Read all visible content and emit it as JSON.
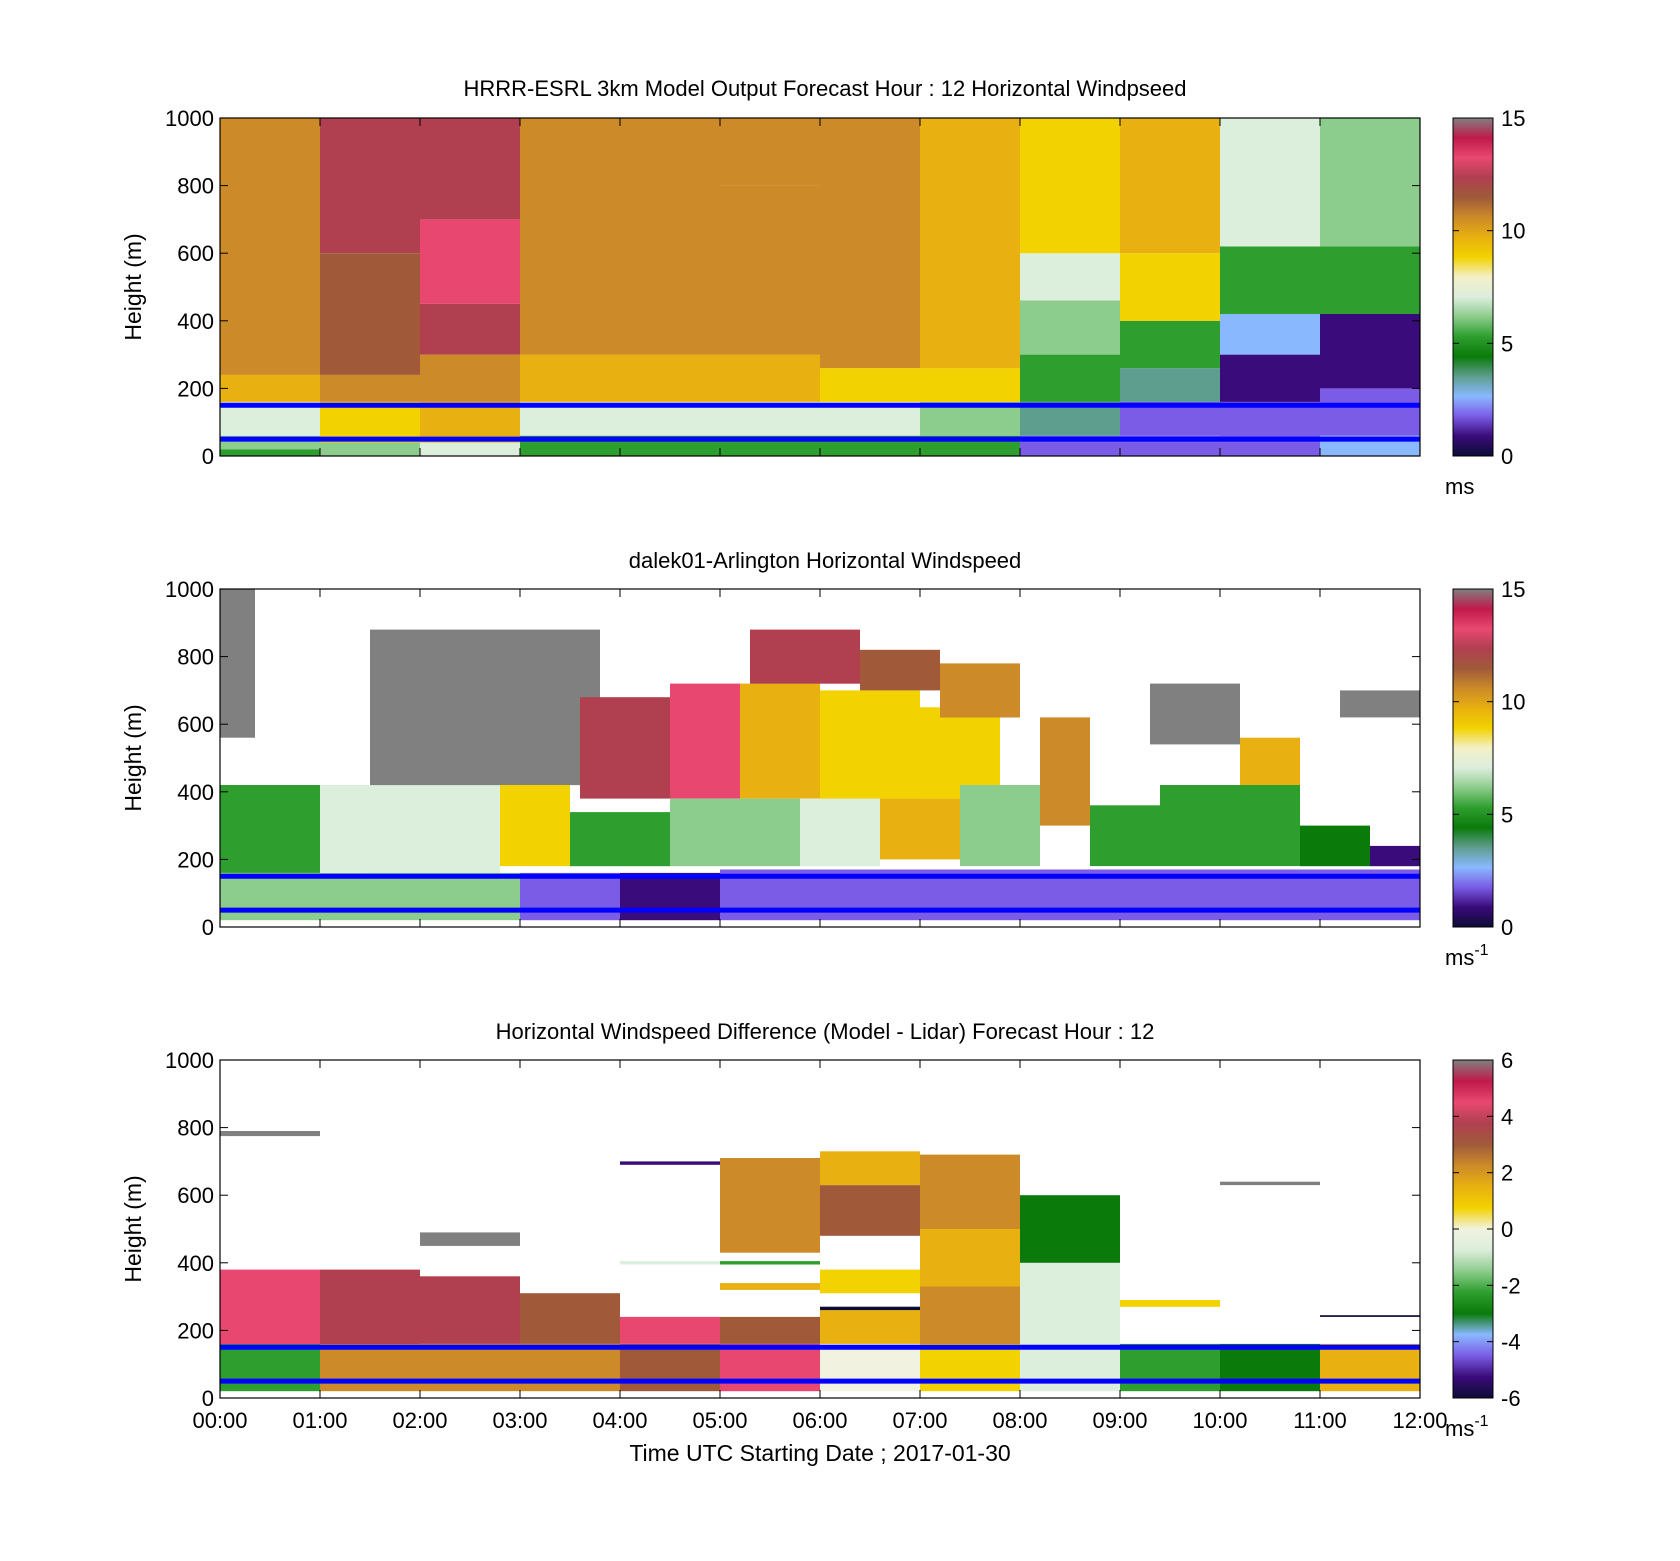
{
  "figure": {
    "xlabel": "Time UTC  Starting Date ; 2017-01-30",
    "x_ticks": [
      "00:00",
      "01:00",
      "02:00",
      "03:00",
      "04:00",
      "05:00",
      "06:00",
      "07:00",
      "08:00",
      "09:00",
      "10:00",
      "11:00",
      "12:00"
    ],
    "ylabel": "Height (m)",
    "y_ticks": [
      "0",
      "200",
      "400",
      "600",
      "800",
      "1000"
    ],
    "reference_lines": {
      "color": "#0000ff",
      "heights_m": [
        50,
        150
      ]
    }
  },
  "colormaps": {
    "windspeed": [
      "#0c0c36",
      "#3a0b7a",
      "#7a5ce6",
      "#8ab8ff",
      "#5e9e8f",
      "#0a7a0a",
      "#2e9e2e",
      "#8ccc8c",
      "#dceedc",
      "#f4f0c8",
      "#f2d200",
      "#e8b010",
      "#cc8a28",
      "#a05a3a",
      "#b04050",
      "#e84870",
      "#c01a4a",
      "#808080"
    ],
    "difference": [
      "#0c0c36",
      "#3a0b7a",
      "#7a5ce6",
      "#8ab8ff",
      "#0a7a0a",
      "#2e9e2e",
      "#8ccc8c",
      "#dceedc",
      "#f2f2e0",
      "#f2d200",
      "#e8b010",
      "#cc8a28",
      "#a05a3a",
      "#b04050",
      "#e84870",
      "#c01a4a",
      "#808080"
    ]
  },
  "chart_data": [
    {
      "type": "heatmap",
      "title": "HRRR-ESRL 3km Model Output   Forecast Hour : 12 Horizontal Windpseed",
      "xlabel": "",
      "ylabel": "Height (m)",
      "xlim": [
        0,
        12
      ],
      "ylim": [
        0,
        1000
      ],
      "x_ticks": [],
      "y_ticks": [
        "0",
        "200",
        "400",
        "600",
        "800",
        "1000"
      ],
      "colorbar": {
        "ticks": [
          "0",
          "5",
          "10",
          "15"
        ],
        "range": [
          0,
          15
        ],
        "unit": "ms",
        "unit_sup": ""
      },
      "cells": [
        {
          "x0": 0,
          "x1": 1,
          "y0": 0,
          "y1": 20,
          "v": 5.0
        },
        {
          "x0": 0,
          "x1": 1,
          "y0": 20,
          "y1": 60,
          "v": 6.5
        },
        {
          "x0": 0,
          "x1": 1,
          "y0": 60,
          "y1": 160,
          "v": 7.2
        },
        {
          "x0": 0,
          "x1": 1,
          "y0": 160,
          "y1": 240,
          "v": 9.5
        },
        {
          "x0": 0,
          "x1": 1,
          "y0": 240,
          "y1": 1000,
          "v": 10.8
        },
        {
          "x0": 1,
          "x1": 2,
          "y0": 0,
          "y1": 40,
          "v": 6.5
        },
        {
          "x0": 1,
          "x1": 2,
          "y0": 40,
          "y1": 160,
          "v": 9.2
        },
        {
          "x0": 1,
          "x1": 2,
          "y0": 160,
          "y1": 240,
          "v": 10.5
        },
        {
          "x0": 1,
          "x1": 2,
          "y0": 240,
          "y1": 600,
          "v": 11.2
        },
        {
          "x0": 1,
          "x1": 2,
          "y0": 600,
          "y1": 1000,
          "v": 12.5
        },
        {
          "x0": 2,
          "x1": 3,
          "y0": 0,
          "y1": 40,
          "v": 7.0
        },
        {
          "x0": 2,
          "x1": 3,
          "y0": 40,
          "y1": 160,
          "v": 9.5
        },
        {
          "x0": 2,
          "x1": 3,
          "y0": 160,
          "y1": 300,
          "v": 11.0
        },
        {
          "x0": 2,
          "x1": 3,
          "y0": 300,
          "y1": 450,
          "v": 12.0
        },
        {
          "x0": 2,
          "x1": 3,
          "y0": 450,
          "y1": 700,
          "v": 13.5
        },
        {
          "x0": 2,
          "x1": 3,
          "y0": 700,
          "y1": 1000,
          "v": 12.2
        },
        {
          "x0": 3,
          "x1": 4,
          "y0": 0,
          "y1": 60,
          "v": 5.5
        },
        {
          "x0": 3,
          "x1": 4,
          "y0": 60,
          "y1": 160,
          "v": 7.3
        },
        {
          "x0": 3,
          "x1": 4,
          "y0": 160,
          "y1": 300,
          "v": 9.5
        },
        {
          "x0": 3,
          "x1": 4,
          "y0": 300,
          "y1": 1000,
          "v": 10.6
        },
        {
          "x0": 4,
          "x1": 5,
          "y0": 0,
          "y1": 60,
          "v": 5.5
        },
        {
          "x0": 4,
          "x1": 5,
          "y0": 60,
          "y1": 160,
          "v": 7.2
        },
        {
          "x0": 4,
          "x1": 5,
          "y0": 160,
          "y1": 300,
          "v": 9.6
        },
        {
          "x0": 4,
          "x1": 5,
          "y0": 300,
          "y1": 1000,
          "v": 10.6
        },
        {
          "x0": 5,
          "x1": 6,
          "y0": 0,
          "y1": 60,
          "v": 5.6
        },
        {
          "x0": 5,
          "x1": 6,
          "y0": 60,
          "y1": 160,
          "v": 7.0
        },
        {
          "x0": 5,
          "x1": 6,
          "y0": 160,
          "y1": 300,
          "v": 9.4
        },
        {
          "x0": 5,
          "x1": 6,
          "y0": 300,
          "y1": 800,
          "v": 10.8
        },
        {
          "x0": 5,
          "x1": 6,
          "y0": 800,
          "y1": 1000,
          "v": 10.2
        },
        {
          "x0": 6,
          "x1": 7,
          "y0": 0,
          "y1": 60,
          "v": 5.6
        },
        {
          "x0": 6,
          "x1": 7,
          "y0": 60,
          "y1": 160,
          "v": 6.8
        },
        {
          "x0": 6,
          "x1": 7,
          "y0": 160,
          "y1": 260,
          "v": 9.2
        },
        {
          "x0": 6,
          "x1": 7,
          "y0": 260,
          "y1": 1000,
          "v": 11.0
        },
        {
          "x0": 7,
          "x1": 8,
          "y0": 0,
          "y1": 60,
          "v": 5.3
        },
        {
          "x0": 7,
          "x1": 8,
          "y0": 60,
          "y1": 160,
          "v": 6.2
        },
        {
          "x0": 7,
          "x1": 8,
          "y0": 160,
          "y1": 260,
          "v": 8.6
        },
        {
          "x0": 7,
          "x1": 8,
          "y0": 260,
          "y1": 1000,
          "v": 9.8
        },
        {
          "x0": 8,
          "x1": 9,
          "y0": 0,
          "y1": 60,
          "v": 2.2
        },
        {
          "x0": 8,
          "x1": 9,
          "y0": 60,
          "y1": 160,
          "v": 3.5
        },
        {
          "x0": 8,
          "x1": 9,
          "y0": 160,
          "y1": 300,
          "v": 5.0
        },
        {
          "x0": 8,
          "x1": 9,
          "y0": 300,
          "y1": 460,
          "v": 6.5
        },
        {
          "x0": 8,
          "x1": 9,
          "y0": 460,
          "y1": 600,
          "v": 7.2
        },
        {
          "x0": 8,
          "x1": 9,
          "y0": 600,
          "y1": 1000,
          "v": 8.5
        },
        {
          "x0": 9,
          "x1": 10,
          "y0": 0,
          "y1": 60,
          "v": 1.5
        },
        {
          "x0": 9,
          "x1": 10,
          "y0": 60,
          "y1": 160,
          "v": 2.0
        },
        {
          "x0": 9,
          "x1": 10,
          "y0": 160,
          "y1": 260,
          "v": 3.5
        },
        {
          "x0": 9,
          "x1": 10,
          "y0": 260,
          "y1": 400,
          "v": 5.5
        },
        {
          "x0": 9,
          "x1": 10,
          "y0": 400,
          "y1": 600,
          "v": 8.5
        },
        {
          "x0": 9,
          "x1": 10,
          "y0": 600,
          "y1": 1000,
          "v": 9.4
        },
        {
          "x0": 10,
          "x1": 11,
          "y0": 0,
          "y1": 160,
          "v": 1.5
        },
        {
          "x0": 10,
          "x1": 11,
          "y0": 160,
          "y1": 300,
          "v": 1.0
        },
        {
          "x0": 10,
          "x1": 11,
          "y0": 300,
          "y1": 420,
          "v": 2.5
        },
        {
          "x0": 10,
          "x1": 11,
          "y0": 420,
          "y1": 620,
          "v": 5.5
        },
        {
          "x0": 10,
          "x1": 11,
          "y0": 620,
          "y1": 1000,
          "v": 7.0
        },
        {
          "x0": 11,
          "x1": 12,
          "y0": 0,
          "y1": 60,
          "v": 2.8
        },
        {
          "x0": 11,
          "x1": 12,
          "y0": 60,
          "y1": 200,
          "v": 1.6
        },
        {
          "x0": 11,
          "x1": 12,
          "y0": 200,
          "y1": 420,
          "v": 1.2
        },
        {
          "x0": 11,
          "x1": 12,
          "y0": 420,
          "y1": 620,
          "v": 5.0
        },
        {
          "x0": 11,
          "x1": 12,
          "y0": 620,
          "y1": 1000,
          "v": 6.3
        }
      ]
    },
    {
      "type": "heatmap",
      "title": "dalek01-Arlington  Horizontal Windspeed",
      "xlabel": "",
      "ylabel": "Height (m)",
      "xlim": [
        0,
        12
      ],
      "ylim": [
        0,
        1000
      ],
      "x_ticks": [],
      "y_ticks": [
        "0",
        "200",
        "400",
        "600",
        "800",
        "1000"
      ],
      "colorbar": {
        "ticks": [
          "0",
          "5",
          "10",
          "15"
        ],
        "range": [
          0,
          15
        ],
        "unit": "ms",
        "unit_sup": "-1"
      },
      "cells": [
        {
          "x0": 0.0,
          "x1": 1.5,
          "y0": 20,
          "y1": 160,
          "v": 6.2
        },
        {
          "x0": 0.0,
          "x1": 1.0,
          "y0": 160,
          "y1": 420,
          "v": 5.0
        },
        {
          "x0": 0.0,
          "x1": 0.35,
          "y0": 560,
          "y1": 1000,
          "v": 15.5
        },
        {
          "x0": 1.0,
          "x1": 2.8,
          "y0": 160,
          "y1": 420,
          "v": 6.8
        },
        {
          "x0": 1.5,
          "x1": 3.0,
          "y0": 20,
          "y1": 160,
          "v": 6.5
        },
        {
          "x0": 1.5,
          "x1": 3.8,
          "y0": 420,
          "y1": 880,
          "v": 15.5
        },
        {
          "x0": 2.8,
          "x1": 3.5,
          "y0": 180,
          "y1": 420,
          "v": 8.8
        },
        {
          "x0": 3.0,
          "x1": 4.0,
          "y0": 20,
          "y1": 160,
          "v": 1.8
        },
        {
          "x0": 3.5,
          "x1": 4.5,
          "y0": 180,
          "y1": 340,
          "v": 5.2
        },
        {
          "x0": 3.6,
          "x1": 4.5,
          "y0": 380,
          "y1": 680,
          "v": 12.5
        },
        {
          "x0": 4.0,
          "x1": 5.0,
          "y0": 20,
          "y1": 160,
          "v": 1.2
        },
        {
          "x0": 4.5,
          "x1": 5.8,
          "y0": 180,
          "y1": 380,
          "v": 5.8
        },
        {
          "x0": 4.5,
          "x1": 5.2,
          "y0": 380,
          "y1": 720,
          "v": 13.2
        },
        {
          "x0": 5.0,
          "x1": 7.8,
          "y0": 20,
          "y1": 170,
          "v": 2.0
        },
        {
          "x0": 5.2,
          "x1": 6.0,
          "y0": 380,
          "y1": 720,
          "v": 9.5
        },
        {
          "x0": 5.3,
          "x1": 6.4,
          "y0": 720,
          "y1": 880,
          "v": 12.0
        },
        {
          "x0": 5.8,
          "x1": 6.6,
          "y0": 180,
          "y1": 380,
          "v": 6.8
        },
        {
          "x0": 6.0,
          "x1": 7.0,
          "y0": 380,
          "y1": 700,
          "v": 9.2
        },
        {
          "x0": 6.6,
          "x1": 7.7,
          "y0": 200,
          "y1": 380,
          "v": 9.6
        },
        {
          "x0": 7.0,
          "x1": 7.8,
          "y0": 380,
          "y1": 650,
          "v": 9.0
        },
        {
          "x0": 6.4,
          "x1": 7.2,
          "y0": 700,
          "y1": 820,
          "v": 11.2
        },
        {
          "x0": 7.2,
          "x1": 8.0,
          "y0": 620,
          "y1": 780,
          "v": 10.6
        },
        {
          "x0": 7.4,
          "x1": 8.2,
          "y0": 180,
          "y1": 420,
          "v": 6.0
        },
        {
          "x0": 7.8,
          "x1": 9.3,
          "y0": 20,
          "y1": 170,
          "v": 1.5
        },
        {
          "x0": 8.2,
          "x1": 8.7,
          "y0": 300,
          "y1": 620,
          "v": 10.2
        },
        {
          "x0": 8.7,
          "x1": 9.4,
          "y0": 180,
          "y1": 360,
          "v": 5.0
        },
        {
          "x0": 9.3,
          "x1": 12.0,
          "y0": 20,
          "y1": 170,
          "v": 1.4
        },
        {
          "x0": 9.4,
          "x1": 10.8,
          "y0": 180,
          "y1": 420,
          "v": 5.5
        },
        {
          "x0": 9.3,
          "x1": 10.2,
          "y0": 540,
          "y1": 720,
          "v": 15.5
        },
        {
          "x0": 10.2,
          "x1": 10.8,
          "y0": 420,
          "y1": 560,
          "v": 9.6
        },
        {
          "x0": 10.8,
          "x1": 11.5,
          "y0": 180,
          "y1": 300,
          "v": 4.5
        },
        {
          "x0": 11.2,
          "x1": 12.0,
          "y0": 620,
          "y1": 700,
          "v": 15.5
        },
        {
          "x0": 11.5,
          "x1": 12.0,
          "y0": 180,
          "y1": 240,
          "v": 1.0
        }
      ]
    },
    {
      "type": "heatmap",
      "title": "Horizontal Windspeed Difference (Model - Lidar) Forecast Hour : 12",
      "xlabel": "Time UTC  Starting Date ; 2017-01-30",
      "ylabel": "Height (m)",
      "xlim": [
        0,
        12
      ],
      "ylim": [
        0,
        1000
      ],
      "x_ticks": [
        "00:00",
        "01:00",
        "02:00",
        "03:00",
        "04:00",
        "05:00",
        "06:00",
        "07:00",
        "08:00",
        "09:00",
        "10:00",
        "11:00",
        "12:00"
      ],
      "y_ticks": [
        "0",
        "200",
        "400",
        "600",
        "800",
        "1000"
      ],
      "colorbar": {
        "ticks": [
          "-6",
          "-4",
          "-2",
          "0",
          "2",
          "4",
          "6"
        ],
        "range": [
          -6,
          6
        ],
        "unit": "ms",
        "unit_sup": "-1"
      },
      "cells": [
        {
          "x0": 0,
          "x1": 1,
          "y0": 20,
          "y1": 160,
          "v": -2.5
        },
        {
          "x0": 0,
          "x1": 1,
          "y0": 160,
          "y1": 380,
          "v": 4.5
        },
        {
          "x0": 0,
          "x1": 1,
          "y0": 775,
          "y1": 790,
          "v": 7.0
        },
        {
          "x0": 1,
          "x1": 2,
          "y0": 20,
          "y1": 160,
          "v": 2.2
        },
        {
          "x0": 1,
          "x1": 2,
          "y0": 160,
          "y1": 380,
          "v": 4.0
        },
        {
          "x0": 2,
          "x1": 3,
          "y0": 20,
          "y1": 160,
          "v": 2.4
        },
        {
          "x0": 2,
          "x1": 3,
          "y0": 160,
          "y1": 360,
          "v": 3.5
        },
        {
          "x0": 2,
          "x1": 3,
          "y0": 450,
          "y1": 490,
          "v": 7.0
        },
        {
          "x0": 3,
          "x1": 4,
          "y0": 20,
          "y1": 160,
          "v": 2.0
        },
        {
          "x0": 3,
          "x1": 4,
          "y0": 160,
          "y1": 310,
          "v": 2.8
        },
        {
          "x0": 4,
          "x1": 5,
          "y0": 20,
          "y1": 160,
          "v": 3.0
        },
        {
          "x0": 4,
          "x1": 5,
          "y0": 160,
          "y1": 240,
          "v": 4.6
        },
        {
          "x0": 4,
          "x1": 5,
          "y0": 690,
          "y1": 700,
          "v": -5.0
        },
        {
          "x0": 4,
          "x1": 5,
          "y0": 395,
          "y1": 405,
          "v": -1.0
        },
        {
          "x0": 5,
          "x1": 6,
          "y0": 20,
          "y1": 160,
          "v": 4.6
        },
        {
          "x0": 5,
          "x1": 6,
          "y0": 160,
          "y1": 240,
          "v": 3.0
        },
        {
          "x0": 5,
          "x1": 6,
          "y0": 320,
          "y1": 340,
          "v": 1.2
        },
        {
          "x0": 5,
          "x1": 6,
          "y0": 395,
          "y1": 405,
          "v": -2.5
        },
        {
          "x0": 5,
          "x1": 6,
          "y0": 430,
          "y1": 540,
          "v": 2.2
        },
        {
          "x0": 5,
          "x1": 6,
          "y0": 540,
          "y1": 710,
          "v": 2.6
        },
        {
          "x0": 6,
          "x1": 7,
          "y0": 20,
          "y1": 160,
          "v": -0.2
        },
        {
          "x0": 6,
          "x1": 7,
          "y0": 160,
          "y1": 260,
          "v": 1.2
        },
        {
          "x0": 6,
          "x1": 7,
          "y0": 260,
          "y1": 270,
          "v": -6.0
        },
        {
          "x0": 6,
          "x1": 7,
          "y0": 310,
          "y1": 380,
          "v": 0.8
        },
        {
          "x0": 6,
          "x1": 7,
          "y0": 480,
          "y1": 630,
          "v": 2.8
        },
        {
          "x0": 6,
          "x1": 7,
          "y0": 630,
          "y1": 730,
          "v": 1.4
        },
        {
          "x0": 7,
          "x1": 8,
          "y0": 20,
          "y1": 160,
          "v": 0.4
        },
        {
          "x0": 7,
          "x1": 8,
          "y0": 160,
          "y1": 330,
          "v": 2.4
        },
        {
          "x0": 7,
          "x1": 8,
          "y0": 330,
          "y1": 500,
          "v": 1.2
        },
        {
          "x0": 7,
          "x1": 8,
          "y0": 500,
          "y1": 720,
          "v": 2.0
        },
        {
          "x0": 8,
          "x1": 9,
          "y0": 20,
          "y1": 160,
          "v": -0.8
        },
        {
          "x0": 8,
          "x1": 9,
          "y0": 160,
          "y1": 400,
          "v": -1.0
        },
        {
          "x0": 8,
          "x1": 9,
          "y0": 400,
          "y1": 600,
          "v": -2.8
        },
        {
          "x0": 9,
          "x1": 10,
          "y0": 20,
          "y1": 160,
          "v": -2.2
        },
        {
          "x0": 9,
          "x1": 10,
          "y0": 270,
          "y1": 290,
          "v": 1.0
        },
        {
          "x0": 10,
          "x1": 11,
          "y0": 20,
          "y1": 160,
          "v": -3.0
        },
        {
          "x0": 10,
          "x1": 11,
          "y0": 630,
          "y1": 640,
          "v": 7.0
        },
        {
          "x0": 11,
          "x1": 12,
          "y0": 20,
          "y1": 160,
          "v": 1.2
        },
        {
          "x0": 11,
          "x1": 12,
          "y0": 240,
          "y1": 245,
          "v": -6.0
        }
      ]
    }
  ]
}
